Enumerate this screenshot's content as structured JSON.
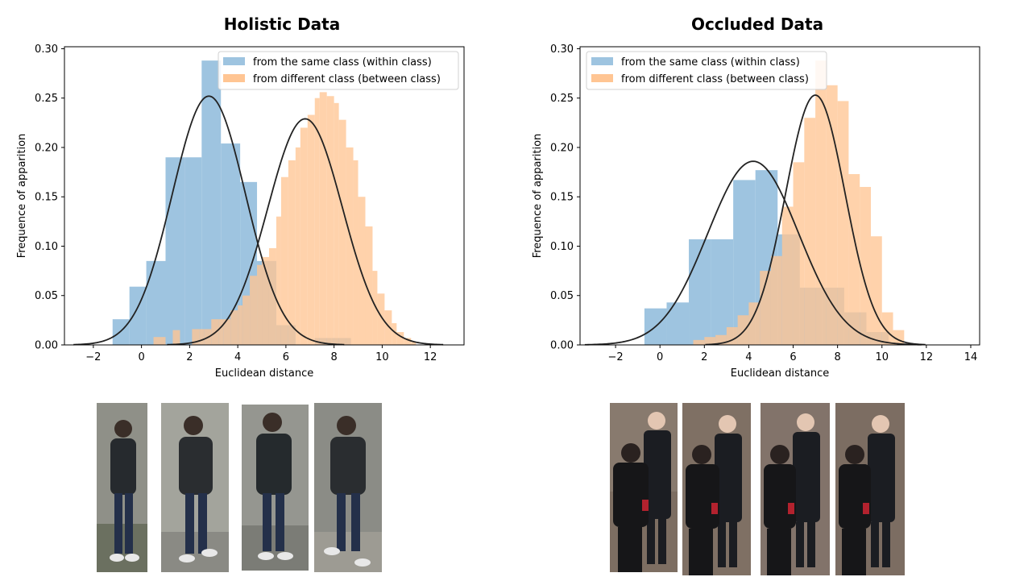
{
  "colors": {
    "within": "#9ec4e0",
    "between": "#ffc593",
    "overlap": "#cba98c",
    "curve": "#222222",
    "axis": "#000000"
  },
  "chart_data": [
    {
      "type": "histogram",
      "title": "Holistic Data",
      "xlabel": "Euclidean distance",
      "ylabel": "Frequence of apparition",
      "xlim": [
        -3.2,
        13.4
      ],
      "ylim": [
        0,
        0.302
      ],
      "xticks": [
        -2,
        0,
        2,
        4,
        6,
        8,
        10,
        12
      ],
      "yticks": [
        0.0,
        0.05,
        0.1,
        0.15,
        0.2,
        0.25,
        0.3
      ],
      "legend_position": "top-right",
      "grid": false,
      "series": [
        {
          "name": "from the same class (within class)",
          "color": "#9ec4e0",
          "bins": [
            [
              -1.2,
              -0.5,
              0.026
            ],
            [
              -0.5,
              0.2,
              0.059
            ],
            [
              0.2,
              1.0,
              0.085
            ],
            [
              1.0,
              1.8,
              0.19
            ],
            [
              1.8,
              2.5,
              0.19
            ],
            [
              2.5,
              3.3,
              0.288
            ],
            [
              3.3,
              4.1,
              0.204
            ],
            [
              4.1,
              4.8,
              0.165
            ],
            [
              4.8,
              5.6,
              0.085
            ],
            [
              5.6,
              6.4,
              0.02
            ],
            [
              6.4,
              7.2,
              0.0
            ],
            [
              7.2,
              7.9,
              0.007
            ],
            [
              7.9,
              8.7,
              0.007
            ]
          ],
          "fit": {
            "mean": 2.8,
            "peak": 0.252,
            "sd": 1.52
          }
        },
        {
          "name": "from different class (between class)",
          "color": "#ffc593",
          "bins": [
            [
              0.5,
              0.8,
              0.008
            ],
            [
              0.8,
              1.0,
              0.008
            ],
            [
              1.0,
              1.3,
              0.0
            ],
            [
              1.3,
              1.6,
              0.015
            ],
            [
              1.6,
              1.8,
              0.0
            ],
            [
              1.8,
              2.1,
              0.0
            ],
            [
              2.1,
              2.4,
              0.016
            ],
            [
              2.4,
              2.6,
              0.016
            ],
            [
              2.6,
              2.9,
              0.016
            ],
            [
              2.9,
              3.2,
              0.026
            ],
            [
              3.2,
              3.4,
              0.026
            ],
            [
              3.4,
              3.7,
              0.026
            ],
            [
              3.7,
              4.0,
              0.035
            ],
            [
              4.0,
              4.2,
              0.04
            ],
            [
              4.2,
              4.5,
              0.05
            ],
            [
              4.5,
              4.8,
              0.07
            ],
            [
              4.8,
              5.0,
              0.081
            ],
            [
              5.0,
              5.3,
              0.089
            ],
            [
              5.3,
              5.6,
              0.098
            ],
            [
              5.6,
              5.8,
              0.13
            ],
            [
              5.8,
              6.1,
              0.17
            ],
            [
              6.1,
              6.4,
              0.187
            ],
            [
              6.4,
              6.6,
              0.2
            ],
            [
              6.6,
              6.9,
              0.22
            ],
            [
              6.9,
              7.2,
              0.233
            ],
            [
              7.2,
              7.4,
              0.25
            ],
            [
              7.4,
              7.7,
              0.256
            ],
            [
              7.7,
              8.0,
              0.252
            ],
            [
              8.0,
              8.2,
              0.245
            ],
            [
              8.2,
              8.5,
              0.228
            ],
            [
              8.5,
              8.8,
              0.2
            ],
            [
              8.8,
              9.0,
              0.187
            ],
            [
              9.0,
              9.3,
              0.15
            ],
            [
              9.3,
              9.6,
              0.12
            ],
            [
              9.6,
              9.8,
              0.075
            ],
            [
              9.8,
              10.1,
              0.052
            ],
            [
              10.1,
              10.4,
              0.035
            ],
            [
              10.4,
              10.6,
              0.022
            ],
            [
              10.6,
              10.9,
              0.013
            ],
            [
              10.9,
              11.2,
              0.007
            ],
            [
              11.2,
              11.4,
              0.003
            ]
          ],
          "fit": {
            "mean": 6.8,
            "peak": 0.229,
            "sd": 1.55
          }
        }
      ]
    },
    {
      "type": "histogram",
      "title": "Occluded Data",
      "xlabel": "Euclidean distance",
      "ylabel": "Frequence of apparition",
      "xlim": [
        -3.6,
        14.4
      ],
      "ylim": [
        0,
        0.302
      ],
      "xticks": [
        -2,
        0,
        2,
        4,
        6,
        8,
        10,
        12,
        14
      ],
      "yticks": [
        0.0,
        0.05,
        0.1,
        0.15,
        0.2,
        0.25,
        0.3
      ],
      "legend_position": "top-left",
      "grid": false,
      "series": [
        {
          "name": "from the same class (within class)",
          "color": "#9ec4e0",
          "bins": [
            [
              -0.7,
              0.3,
              0.037
            ],
            [
              0.3,
              1.3,
              0.043
            ],
            [
              1.3,
              2.3,
              0.107
            ],
            [
              2.3,
              3.3,
              0.107
            ],
            [
              3.3,
              4.3,
              0.167
            ],
            [
              4.3,
              5.3,
              0.177
            ],
            [
              5.3,
              6.3,
              0.112
            ],
            [
              6.3,
              7.3,
              0.058
            ],
            [
              7.3,
              8.3,
              0.058
            ],
            [
              8.3,
              9.3,
              0.033
            ],
            [
              9.3,
              10.3,
              0.013
            ]
          ],
          "fit": {
            "mean": 4.2,
            "peak": 0.186,
            "sd": 2.05
          }
        },
        {
          "name": "from different class (between class)",
          "color": "#ffc593",
          "bins": [
            [
              0.5,
              1.0,
              0.0
            ],
            [
              1.0,
              1.5,
              0.0
            ],
            [
              1.5,
              2.0,
              0.005
            ],
            [
              2.0,
              2.5,
              0.008
            ],
            [
              2.5,
              3.0,
              0.01
            ],
            [
              3.0,
              3.5,
              0.018
            ],
            [
              3.5,
              4.0,
              0.03
            ],
            [
              4.0,
              4.5,
              0.043
            ],
            [
              4.5,
              5.0,
              0.075
            ],
            [
              5.0,
              5.5,
              0.09
            ],
            [
              5.5,
              6.0,
              0.14
            ],
            [
              6.0,
              6.5,
              0.185
            ],
            [
              6.5,
              7.0,
              0.23
            ],
            [
              7.0,
              7.5,
              0.288
            ],
            [
              7.5,
              8.0,
              0.263
            ],
            [
              8.0,
              8.5,
              0.247
            ],
            [
              8.5,
              9.0,
              0.173
            ],
            [
              9.0,
              9.5,
              0.16
            ],
            [
              9.5,
              10.0,
              0.11
            ],
            [
              10.0,
              10.5,
              0.033
            ],
            [
              10.5,
              11.0,
              0.015
            ]
          ],
          "fit": {
            "mean": 7.0,
            "peak": 0.253,
            "sd": 1.34
          }
        }
      ]
    }
  ]
}
